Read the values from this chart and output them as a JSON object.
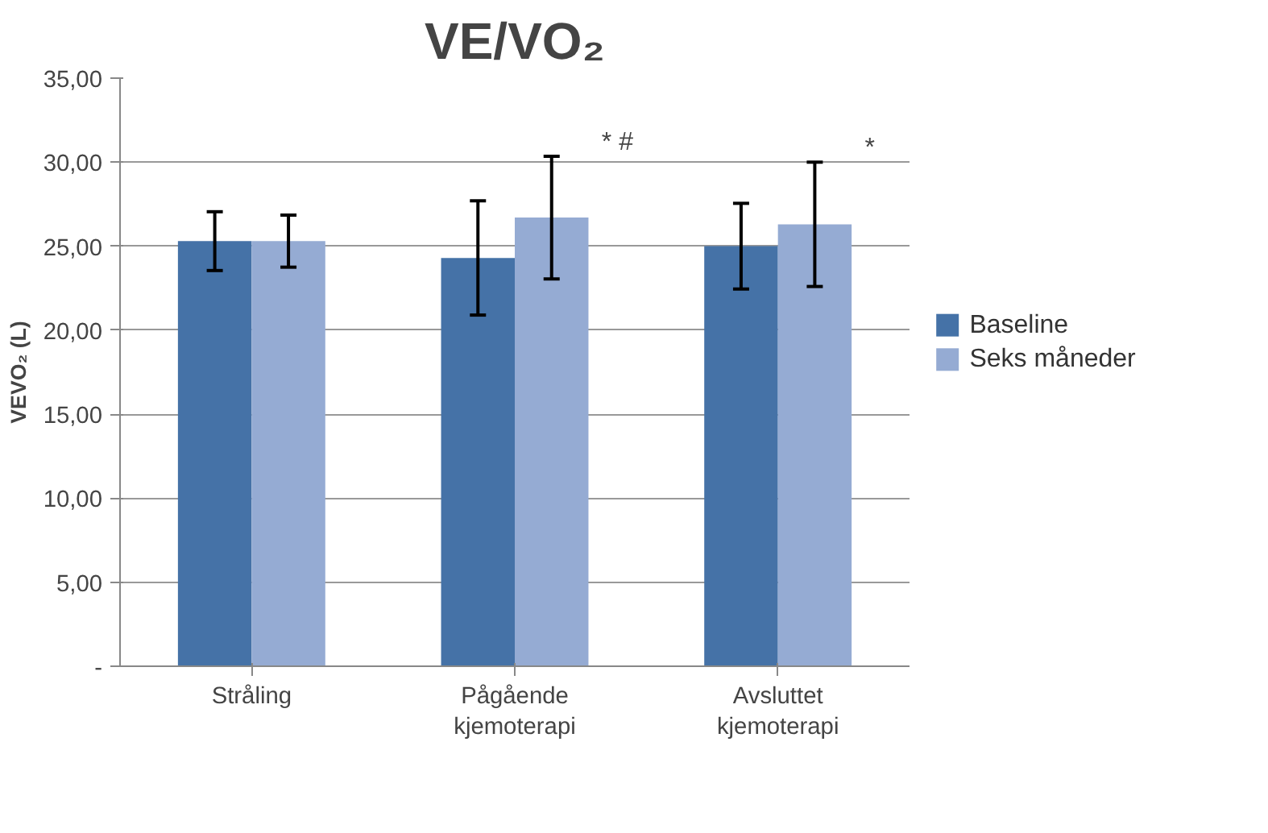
{
  "chart_data": {
    "type": "bar",
    "title": "VE/VO₂",
    "ylabel": "VEVO₂ (L)",
    "categories": [
      "Stråling",
      "Pågående kjemoterapi",
      "Avsluttet kjemoterapi"
    ],
    "series": [
      {
        "name": "Baseline",
        "color": "#4572a7",
        "values": [
          25.3,
          24.3,
          25.0
        ],
        "errors": [
          1.75,
          3.4,
          2.55
        ]
      },
      {
        "name": "Seks måneder",
        "color": "#95abd3",
        "values": [
          25.3,
          26.7,
          26.3
        ],
        "errors": [
          1.55,
          3.65,
          3.7
        ]
      }
    ],
    "ylim": [
      0,
      35
    ],
    "yticks": [
      {
        "value": 0,
        "label": "-"
      },
      {
        "value": 5,
        "label": "5,00"
      },
      {
        "value": 10,
        "label": "10,00"
      },
      {
        "value": 15,
        "label": "15,00"
      },
      {
        "value": 20,
        "label": "20,00"
      },
      {
        "value": 25,
        "label": "25,00"
      },
      {
        "value": 30,
        "label": "30,00"
      },
      {
        "value": 35,
        "label": "35,00"
      }
    ],
    "annotations": [
      "* #",
      "*"
    ],
    "grid": "y",
    "legend": "right"
  }
}
